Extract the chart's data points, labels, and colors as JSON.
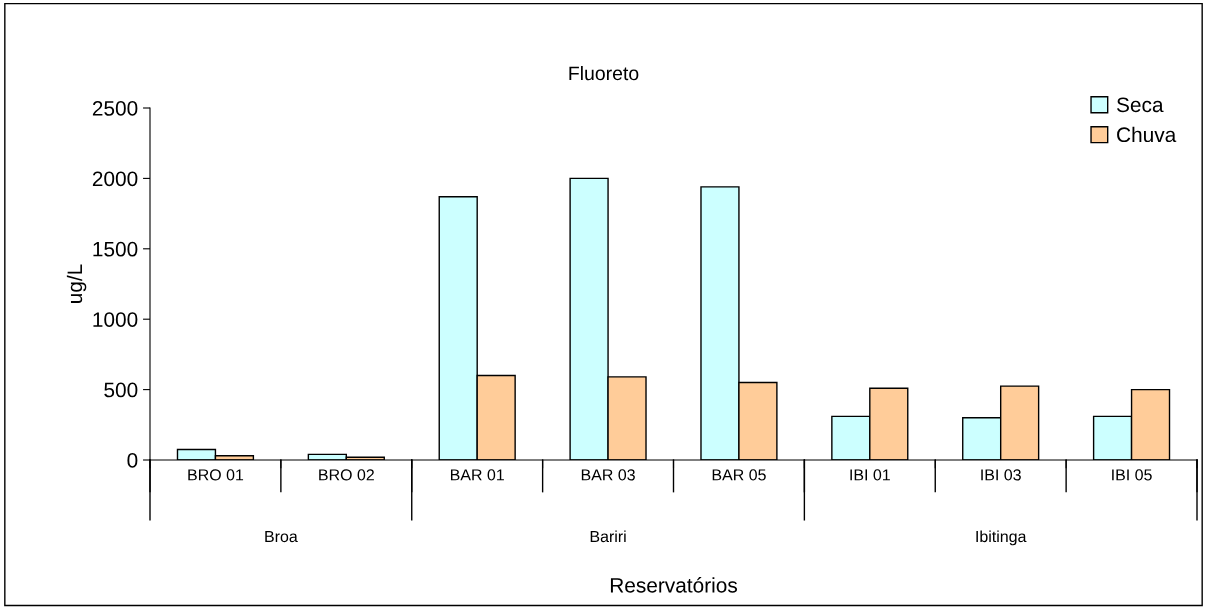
{
  "chart_data": {
    "type": "bar",
    "title": "Fluoreto",
    "xlabel": "Reservatórios",
    "ylabel": "ug/L",
    "categories": [
      "BRO 01",
      "BRO 02",
      "BAR 01",
      "BAR 03",
      "BAR 05",
      "IBI 01",
      "IBI 03",
      "IBI 05"
    ],
    "series": [
      {
        "name": "Seca",
        "color": "#ccffff",
        "values": [
          75,
          40,
          1870,
          2000,
          1940,
          310,
          300,
          310
        ]
      },
      {
        "name": "Chuva",
        "color": "#ffcc99",
        "values": [
          30,
          20,
          600,
          590,
          550,
          510,
          525,
          500
        ]
      }
    ],
    "annotations": [
      "Broa",
      "Bariri",
      "Ibitinga"
    ],
    "ylim": [
      0,
      2500
    ],
    "yticks": [
      0,
      500,
      1000,
      1500,
      2000,
      2500
    ],
    "grid": false,
    "legend": "top right"
  }
}
